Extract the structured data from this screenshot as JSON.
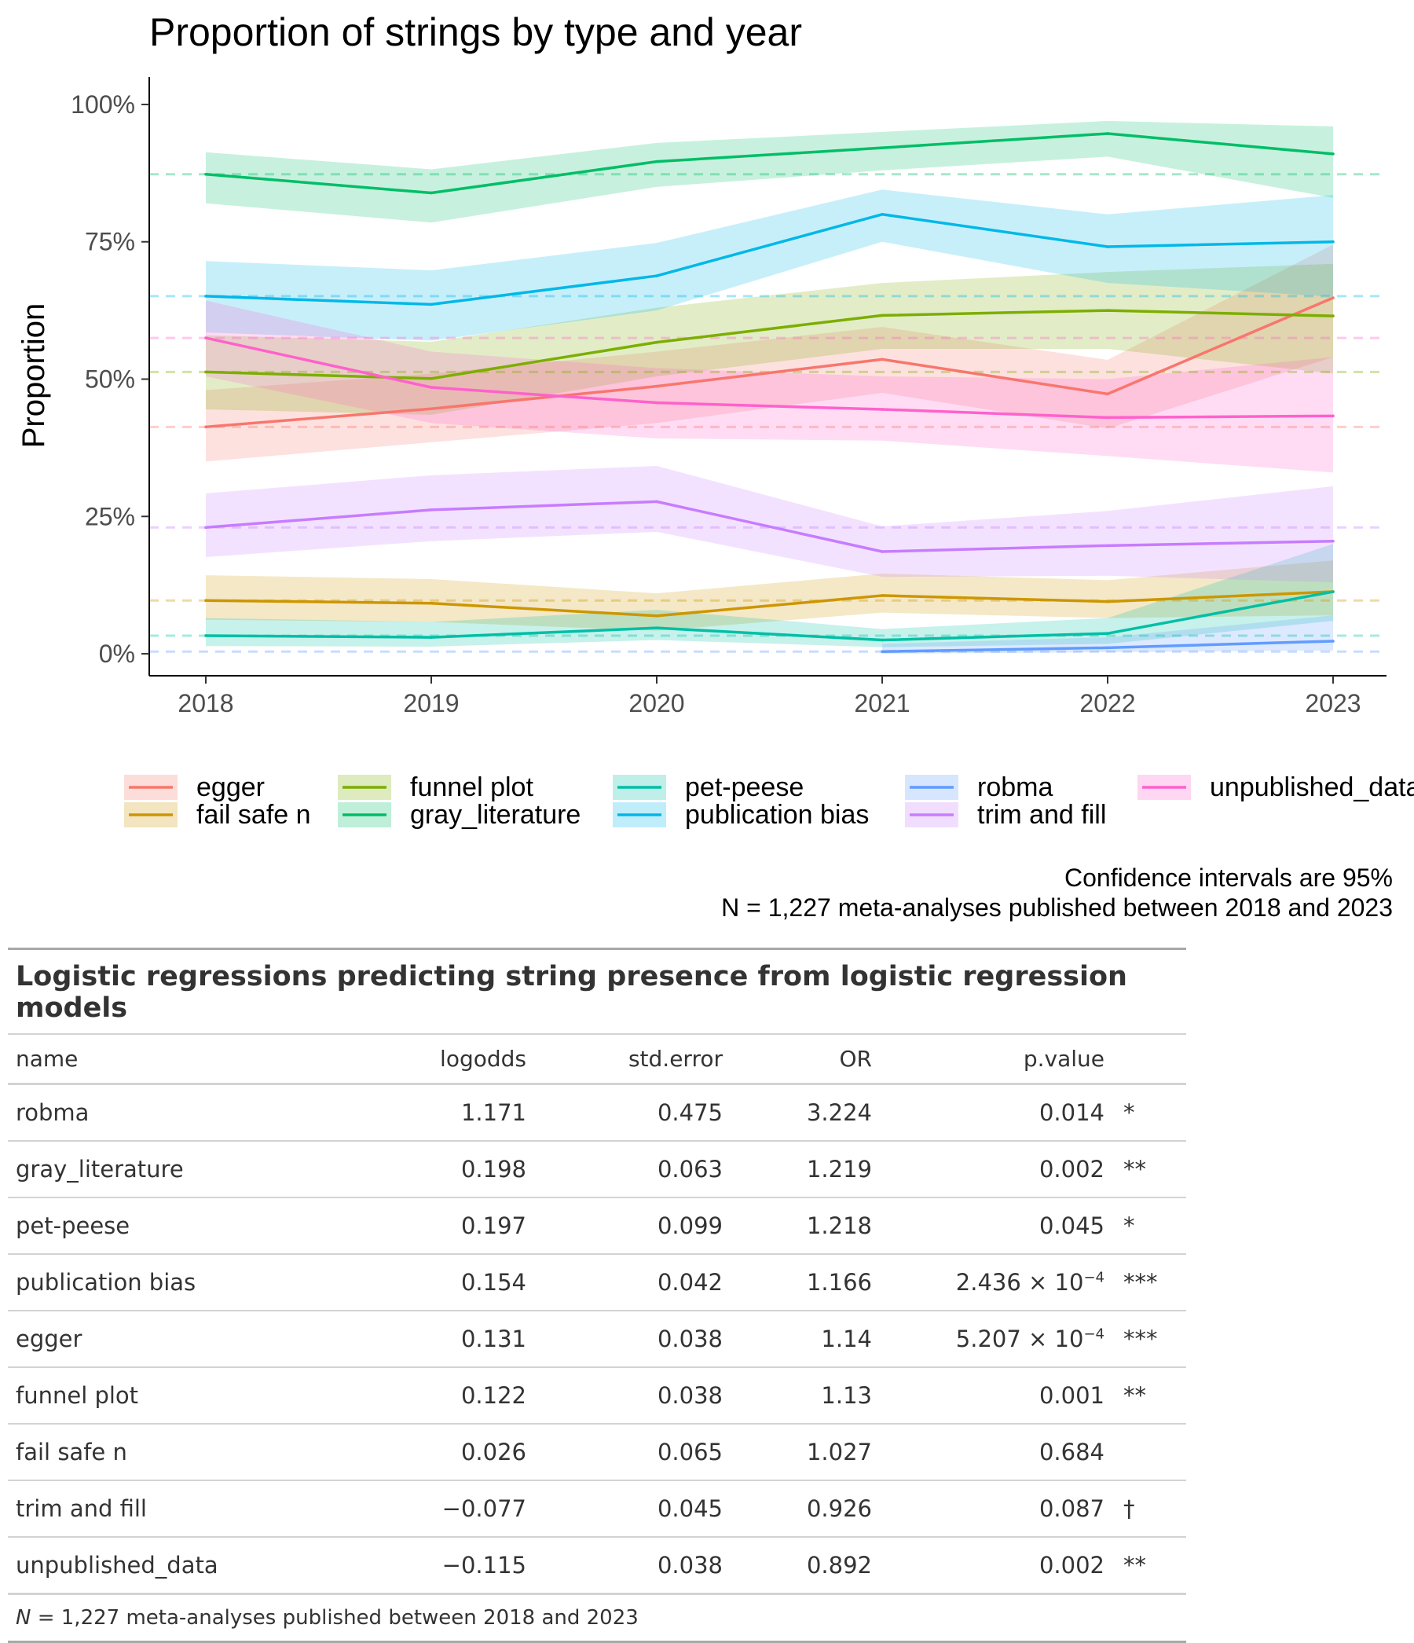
{
  "chart_data": {
    "type": "line",
    "title": "Proportion of strings by type and year",
    "ylabel": "Proportion",
    "xlabel": "",
    "x": [
      2018,
      2019,
      2020,
      2021,
      2022,
      2023
    ],
    "x_tick_labels": [
      "2018",
      "2019",
      "2020",
      "2021",
      "2022",
      "2023"
    ],
    "ylim": [
      -0.04,
      1.05
    ],
    "y_ticks": [
      0,
      0.25,
      0.5,
      0.75,
      1.0
    ],
    "y_tick_labels": [
      "0%",
      "25%",
      "50%",
      "75%",
      "100%"
    ],
    "legend_position": "bottom",
    "series": [
      {
        "name": "egger",
        "color": "#F8766D",
        "values": [
          0.413,
          0.446,
          0.487,
          0.536,
          0.473,
          0.648
        ],
        "lower": [
          0.35,
          0.385,
          0.42,
          0.475,
          0.41,
          0.54
        ],
        "upper": [
          0.48,
          0.51,
          0.55,
          0.595,
          0.535,
          0.745
        ],
        "mean": 0.413
      },
      {
        "name": "fail safe n",
        "color": "#CD9600",
        "values": [
          0.097,
          0.092,
          0.069,
          0.106,
          0.095,
          0.113
        ],
        "lower": [
          0.062,
          0.058,
          0.042,
          0.075,
          0.065,
          0.07
        ],
        "upper": [
          0.143,
          0.136,
          0.11,
          0.146,
          0.134,
          0.17
        ],
        "mean": 0.097
      },
      {
        "name": "funnel plot",
        "color": "#7CAE00",
        "values": [
          0.513,
          0.501,
          0.567,
          0.616,
          0.625,
          0.615
        ],
        "lower": [
          0.445,
          0.435,
          0.505,
          0.555,
          0.555,
          0.51
        ],
        "upper": [
          0.58,
          0.568,
          0.63,
          0.675,
          0.695,
          0.71
        ],
        "mean": 0.513
      },
      {
        "name": "gray_literature",
        "color": "#00BE67",
        "values": [
          0.873,
          0.839,
          0.896,
          0.921,
          0.947,
          0.91
        ],
        "lower": [
          0.82,
          0.785,
          0.85,
          0.88,
          0.905,
          0.83
        ],
        "upper": [
          0.913,
          0.882,
          0.93,
          0.95,
          0.97,
          0.96
        ],
        "mean": 0.873
      },
      {
        "name": "pet-peese",
        "color": "#00BFA5",
        "values": [
          0.033,
          0.03,
          0.047,
          0.025,
          0.037,
          0.113
        ],
        "lower": [
          0.014,
          0.013,
          0.025,
          0.012,
          0.018,
          0.06
        ],
        "upper": [
          0.065,
          0.058,
          0.08,
          0.045,
          0.065,
          0.2
        ],
        "mean": 0.033
      },
      {
        "name": "publication bias",
        "color": "#00B8E7",
        "values": [
          0.651,
          0.636,
          0.688,
          0.8,
          0.741,
          0.75
        ],
        "lower": [
          0.585,
          0.57,
          0.625,
          0.75,
          0.675,
          0.65
        ],
        "upper": [
          0.715,
          0.698,
          0.748,
          0.845,
          0.8,
          0.835
        ],
        "mean": 0.651
      },
      {
        "name": "robma",
        "color": "#619CFF",
        "values": [
          null,
          null,
          null,
          0.004,
          0.011,
          0.023
        ],
        "lower": [
          null,
          null,
          null,
          0.0,
          0.003,
          0.006
        ],
        "upper": [
          null,
          null,
          null,
          0.018,
          0.03,
          0.07
        ],
        "mean": 0.004
      },
      {
        "name": "trim and fill",
        "color": "#C77CFF",
        "values": [
          0.23,
          0.262,
          0.277,
          0.186,
          0.197,
          0.205
        ],
        "lower": [
          0.176,
          0.205,
          0.222,
          0.14,
          0.142,
          0.13
        ],
        "upper": [
          0.292,
          0.325,
          0.342,
          0.232,
          0.26,
          0.305
        ],
        "mean": 0.23
      },
      {
        "name": "unpublished_data",
        "color": "#FF61CC",
        "values": [
          0.575,
          0.485,
          0.457,
          0.445,
          0.43,
          0.433
        ],
        "lower": [
          0.505,
          0.42,
          0.392,
          0.388,
          0.36,
          0.33
        ],
        "upper": [
          0.643,
          0.55,
          0.52,
          0.505,
          0.5,
          0.54
        ],
        "mean": 0.575
      }
    ]
  },
  "caption": {
    "line1": "Confidence intervals are 95%",
    "line2": "N = 1,227 meta-analyses published between 2018 and 2023"
  },
  "table": {
    "title": "Logistic regressions predicting string presence from logistic regression models",
    "columns": [
      "name",
      "logodds",
      "std.error",
      "OR",
      "p.value"
    ],
    "rows": [
      {
        "name": "robma",
        "logodds": "1.171",
        "std_error": "0.475",
        "or": "3.224",
        "p_value": "0.014",
        "p_exp": "",
        "sig": "*"
      },
      {
        "name": "gray_literature",
        "logodds": "0.198",
        "std_error": "0.063",
        "or": "1.219",
        "p_value": "0.002",
        "p_exp": "",
        "sig": "**"
      },
      {
        "name": "pet-peese",
        "logodds": "0.197",
        "std_error": "0.099",
        "or": "1.218",
        "p_value": "0.045",
        "p_exp": "",
        "sig": "*"
      },
      {
        "name": "publication bias",
        "logodds": "0.154",
        "std_error": "0.042",
        "or": "1.166",
        "p_value": "2.436 × 10",
        "p_exp": "−4",
        "sig": "***"
      },
      {
        "name": "egger",
        "logodds": "0.131",
        "std_error": "0.038",
        "or": "1.14",
        "p_value": "5.207 × 10",
        "p_exp": "−4",
        "sig": "***"
      },
      {
        "name": "funnel plot",
        "logodds": "0.122",
        "std_error": "0.038",
        "or": "1.13",
        "p_value": "0.001",
        "p_exp": "",
        "sig": "**"
      },
      {
        "name": "fail safe n",
        "logodds": "0.026",
        "std_error": "0.065",
        "or": "1.027",
        "p_value": "0.684",
        "p_exp": "",
        "sig": ""
      },
      {
        "name": "trim and fill",
        "logodds": "−0.077",
        "std_error": "0.045",
        "or": "0.926",
        "p_value": "0.087",
        "p_exp": "",
        "sig": "†"
      },
      {
        "name": "unpublished_data",
        "logodds": "−0.115",
        "std_error": "0.038",
        "or": "0.892",
        "p_value": "0.002",
        "p_exp": "",
        "sig": "**"
      }
    ],
    "footnote_n": "N",
    "footnote_rest": " = 1,227 meta-analyses published between 2018 and 2023"
  }
}
